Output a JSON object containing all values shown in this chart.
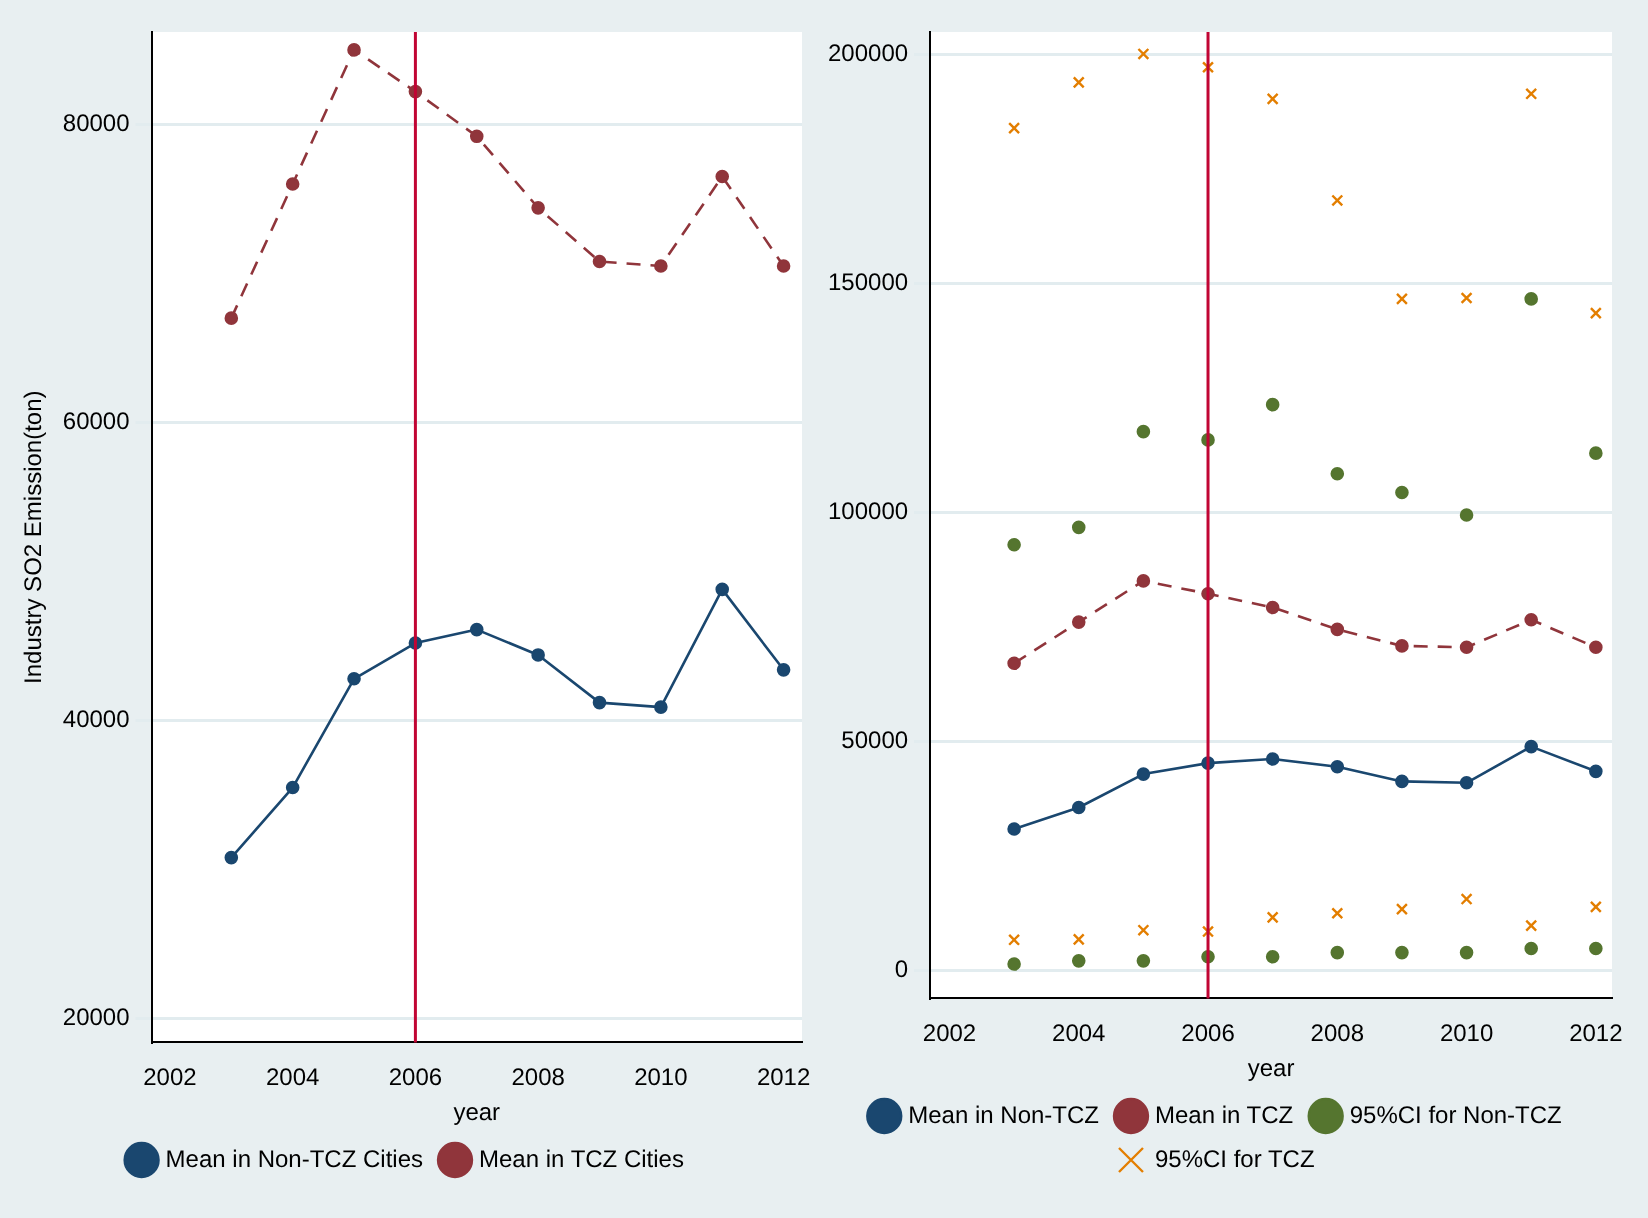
{
  "chart_data": [
    {
      "type": "line",
      "x": [
        2003,
        2004,
        2005,
        2006,
        2007,
        2008,
        2009,
        2010,
        2011,
        2012
      ],
      "xlabel": "year",
      "ylabel": "Industry SO2 Emission(ton)",
      "xlim": [
        2001.7,
        2012.3
      ],
      "xticks": [
        2002,
        2004,
        2006,
        2008,
        2010,
        2012
      ],
      "ylim": [
        18400,
        86200
      ],
      "yticks": [
        20000,
        40000,
        60000,
        80000
      ],
      "grid": "y",
      "legend": "bottom",
      "marker": "circle",
      "series": [
        {
          "name": "Mean in Non-TCZ Cities",
          "color": "#1a476f",
          "line_style": "solid",
          "values": [
            30800,
            35500,
            42800,
            45200,
            46100,
            44400,
            41200,
            40900,
            48800,
            43400
          ]
        },
        {
          "name": "Mean in TCZ Cities",
          "color": "#90353b",
          "line_style": "dashed",
          "values": [
            67000,
            76000,
            85000,
            82200,
            79200,
            74400,
            70800,
            70500,
            76500,
            70500
          ]
        }
      ],
      "ref_lines": [
        {
          "axis": "x",
          "value": 2006,
          "color": "#c10534"
        }
      ]
    },
    {
      "type": "line",
      "x": [
        2003,
        2004,
        2005,
        2006,
        2007,
        2008,
        2009,
        2010,
        2011,
        2012
      ],
      "xlabel": "year",
      "xlim": [
        2001.7,
        2012.25
      ],
      "xticks": [
        2002,
        2004,
        2006,
        2008,
        2010,
        2012
      ],
      "ylim": [
        -6200,
        204900
      ],
      "yticks": [
        0,
        50000,
        100000,
        150000,
        200000
      ],
      "grid": "y",
      "legend": "bottom",
      "marker": "circle",
      "series": [
        {
          "name": "Mean in Non-TCZ",
          "color": "#1a476f",
          "line_style": "solid",
          "values": [
            30800,
            35500,
            42800,
            45200,
            46100,
            44400,
            41200,
            40900,
            48800,
            43400
          ]
        },
        {
          "name": "Mean in TCZ",
          "color": "#90353b",
          "line_style": "dashed",
          "values": [
            67000,
            76000,
            85000,
            82200,
            79200,
            74400,
            70800,
            70500,
            76500,
            70500
          ]
        },
        {
          "name": "95%CI for Non-TCZ",
          "type": "scatter",
          "marker": "circle",
          "color": "#55752f",
          "values": [
            92900,
            96700,
            117600,
            115800,
            123500,
            108400,
            104300,
            99400,
            146600,
            112900
          ]
        },
        {
          "type": "scatter",
          "marker": "circle",
          "color": "#55752f",
          "values": [
            1300,
            2000,
            2000,
            2900,
            2900,
            3800,
            3800,
            3800,
            4700,
            4700
          ]
        },
        {
          "name": "95%CI for TCZ",
          "type": "scatter",
          "marker": "cross",
          "color": "#e37e00",
          "values": [
            183900,
            193900,
            200100,
            197200,
            190300,
            168100,
            146600,
            146800,
            191400,
            143500
          ]
        },
        {
          "type": "scatter",
          "marker": "cross",
          "color": "#e37e00",
          "values": [
            6600,
            6700,
            8700,
            8400,
            11500,
            12400,
            13300,
            15500,
            9700,
            13800
          ]
        }
      ],
      "ref_lines": [
        {
          "axis": "x",
          "value": 2006,
          "color": "#c10534"
        }
      ]
    }
  ]
}
